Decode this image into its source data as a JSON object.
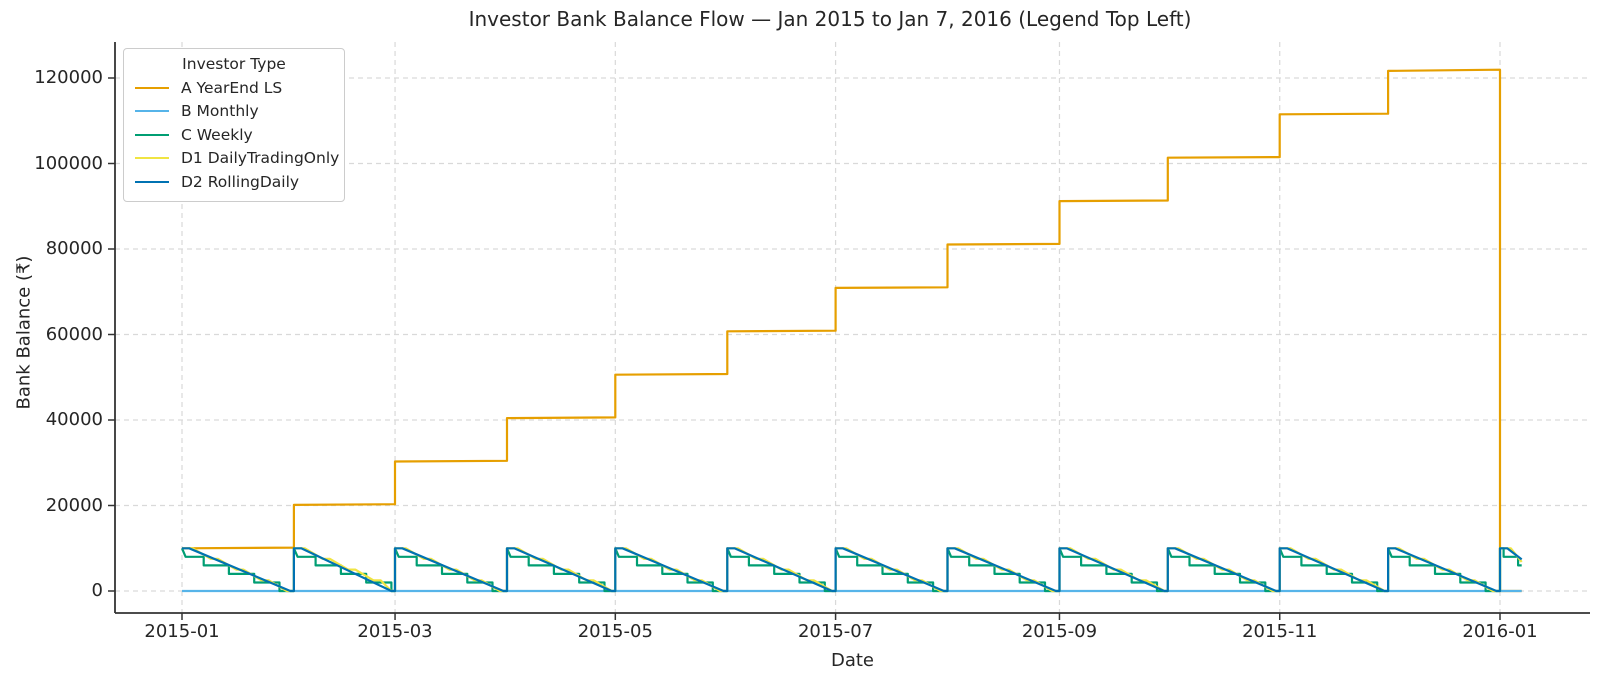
{
  "title": "Investor Bank Balance Flow — Jan 2015 to Jan 7, 2016 (Legend Top Left)",
  "chart_data": {
    "type": "line",
    "title": "Investor Bank Balance Flow — Jan 2015 to Jan 7, 2016 (Legend Top Left)",
    "xlabel": "Date",
    "ylabel": "Bank Balance (₹)",
    "legend_title": "Investor Type",
    "legend_position": "top-left",
    "grid": true,
    "grid_style": "dashed-light-gray",
    "x_tick_labels": [
      "2015-01",
      "2015-03",
      "2015-05",
      "2015-07",
      "2015-09",
      "2015-11",
      "2016-01"
    ],
    "x_tick_day_offsets": [
      0,
      59,
      120,
      181,
      243,
      304,
      365
    ],
    "y_ticks": [
      0,
      20000,
      40000,
      60000,
      80000,
      100000,
      120000
    ],
    "ylim": [
      -5000,
      128500
    ],
    "x_data_range": [
      "2015-01-01",
      "2016-01-07"
    ],
    "total_days": 371,
    "month_start_day_offsets": [
      0,
      31,
      59,
      90,
      120,
      151,
      181,
      212,
      243,
      273,
      304,
      334,
      365
    ],
    "series": [
      {
        "name": "A YearEnd LS",
        "color": "#E69F00",
        "pattern": "monthly_accumulate_step",
        "description": "Deposits ~10000 at each month start, small intra-month gains, full liquidation at year end",
        "month_levels": [
          [
            10000,
            10150
          ],
          [
            20150,
            20300
          ],
          [
            30300,
            30450
          ],
          [
            40450,
            40600
          ],
          [
            50600,
            50750
          ],
          [
            60750,
            60900
          ],
          [
            70900,
            71050
          ],
          [
            81050,
            81200
          ],
          [
            91200,
            91350
          ],
          [
            101350,
            101500
          ],
          [
            111500,
            111650
          ],
          [
            121650,
            121950
          ]
        ],
        "liquidation_day": 365,
        "post_liquidation_value": 0
      },
      {
        "name": "B Monthly",
        "color": "#56B4E9",
        "pattern": "constant",
        "value": 0
      },
      {
        "name": "C Weekly",
        "color": "#009E73",
        "pattern": "weekly_staircase",
        "month_peak": 10000,
        "week_levels": [
          8000,
          6000,
          4000,
          2000,
          0
        ],
        "week_boundary_days": [
          1,
          6,
          13,
          20,
          27
        ],
        "partial_week_points": [
          [
            365,
            10000
          ],
          [
            366,
            10000
          ],
          [
            366,
            8000
          ],
          [
            370,
            8000
          ],
          [
            370,
            6000
          ],
          [
            371,
            6000
          ]
        ]
      },
      {
        "name": "D1 DailyTradingOnly",
        "color": "#F0E442",
        "pattern": "trading_day_decay",
        "month_peak": 10000,
        "hold_days": 3,
        "quarter_levels": [
          10000,
          7500,
          5000,
          2500,
          0
        ],
        "partial_week_points": [
          [
            365,
            10000
          ],
          [
            368,
            10000
          ],
          [
            371,
            6800
          ]
        ]
      },
      {
        "name": "D2 RollingDaily",
        "color": "#0072B2",
        "pattern": "daily_decay",
        "month_peak": 10000,
        "hold_days": 2,
        "partial_week_points": [
          [
            365,
            10000
          ],
          [
            367,
            10000
          ],
          [
            371,
            7400
          ]
        ]
      }
    ]
  },
  "style_colors": {
    "spine": "#333333",
    "grid": "#d9d9d9",
    "text": "#262626",
    "background": "#ffffff"
  }
}
